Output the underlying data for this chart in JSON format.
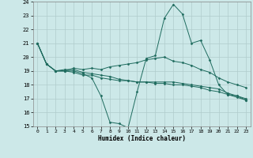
{
  "xlabel": "Humidex (Indice chaleur)",
  "xlim": [
    -0.5,
    23.5
  ],
  "ylim": [
    15,
    24
  ],
  "yticks": [
    15,
    16,
    17,
    18,
    19,
    20,
    21,
    22,
    23,
    24
  ],
  "xticks": [
    0,
    1,
    2,
    3,
    4,
    5,
    6,
    7,
    8,
    9,
    10,
    11,
    12,
    13,
    14,
    15,
    16,
    17,
    18,
    19,
    20,
    21,
    22,
    23
  ],
  "background_color": "#cce8e8",
  "grid_color": "#b0cccc",
  "line_color": "#1e6b5e",
  "lines": [
    [
      21.0,
      19.5,
      19.0,
      19.0,
      19.0,
      18.8,
      18.5,
      17.2,
      15.3,
      15.2,
      14.9,
      17.5,
      19.9,
      20.1,
      22.8,
      23.8,
      23.1,
      21.0,
      21.2,
      19.8,
      18.0,
      17.3,
      17.2,
      16.9
    ],
    [
      21.0,
      19.5,
      19.0,
      19.0,
      19.2,
      19.1,
      19.2,
      19.1,
      19.3,
      19.4,
      19.5,
      19.6,
      19.8,
      19.9,
      20.0,
      19.7,
      19.6,
      19.4,
      19.1,
      18.9,
      18.5,
      18.2,
      18.0,
      17.8
    ],
    [
      21.0,
      19.5,
      19.0,
      19.0,
      18.9,
      18.7,
      18.7,
      18.5,
      18.4,
      18.3,
      18.3,
      18.2,
      18.2,
      18.2,
      18.2,
      18.2,
      18.1,
      18.0,
      17.9,
      17.8,
      17.7,
      17.4,
      17.2,
      17.0
    ],
    [
      21.0,
      19.5,
      19.0,
      19.1,
      19.1,
      18.9,
      18.8,
      18.7,
      18.6,
      18.4,
      18.3,
      18.2,
      18.2,
      18.1,
      18.1,
      18.0,
      18.0,
      17.9,
      17.8,
      17.6,
      17.5,
      17.3,
      17.1,
      16.9
    ]
  ]
}
